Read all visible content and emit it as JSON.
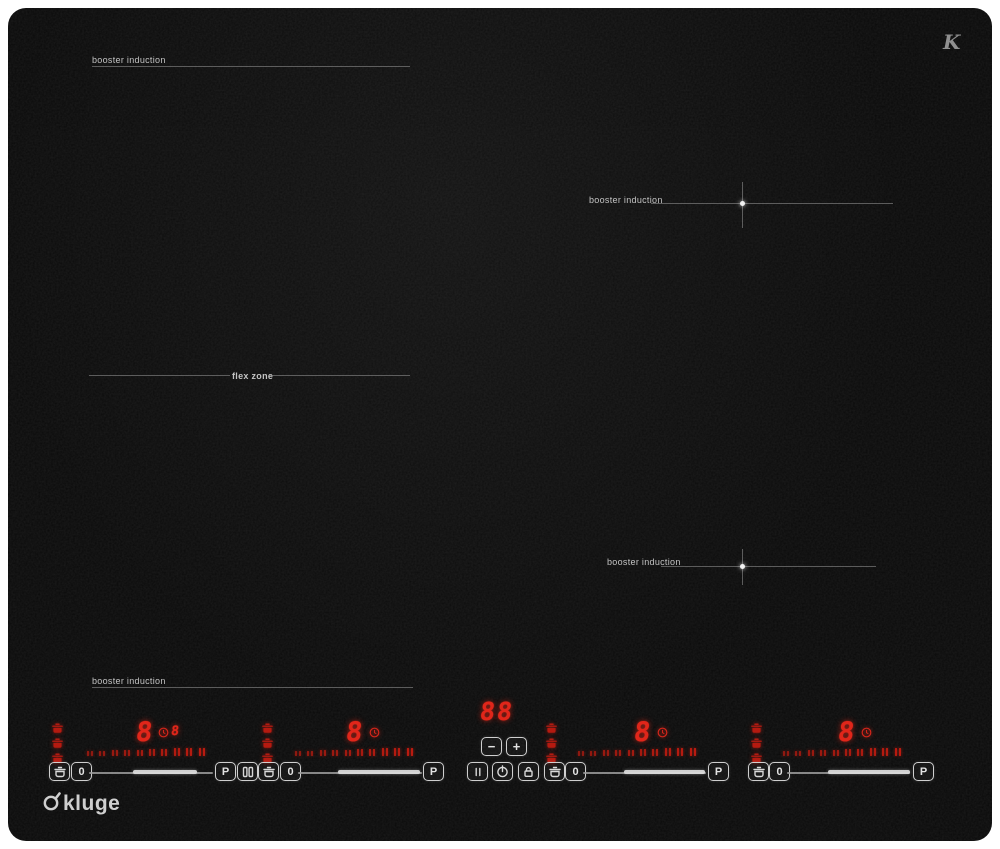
{
  "page": {
    "background": "#ffffff"
  },
  "cooktop": {
    "surface_color": "#0a0a0a"
  },
  "brand": {
    "monogram": "K",
    "wordmark": "kluge"
  },
  "colors": {
    "led_red": "#e0261a",
    "tick_red": "#c01c10",
    "control_outline": "#cfcfcf",
    "annotation_text": "#c4c4c4",
    "annotation_line": "#8d8d8d"
  },
  "annotations": [
    {
      "label": "booster induction",
      "position": "top-left"
    },
    {
      "label": "flex zone",
      "position": "mid-left"
    },
    {
      "label": "booster induction",
      "position": "right-upper"
    },
    {
      "label": "booster induction",
      "position": "right-lower"
    },
    {
      "label": "booster induction",
      "position": "bottom-left"
    }
  ],
  "center_controls": {
    "timer_display": "88",
    "minus_label": "−",
    "plus_label": "+"
  },
  "slider": {
    "tick_pairs": 10
  },
  "icons": {
    "pan_select": "pot-icon",
    "pan_detected": "pot-indicator-icon",
    "timer": "clock-icon",
    "bridge": "flex-bridge-icon",
    "pause": "pause-icon",
    "power": "power-icon",
    "lock": "lock-icon"
  },
  "zones": [
    {
      "name": "zone-1",
      "power_display": "8",
      "timer_digit": "8",
      "zero_label": "0",
      "boost_label": "P",
      "pan_indicators": 3,
      "has_bridge": true
    },
    {
      "name": "zone-2",
      "power_display": "8",
      "zero_label": "0",
      "boost_label": "P",
      "pan_indicators": 3
    },
    {
      "name": "zone-3",
      "power_display": "8",
      "zero_label": "0",
      "boost_label": "P",
      "pan_indicators": 3
    },
    {
      "name": "zone-4",
      "power_display": "8",
      "zero_label": "0",
      "boost_label": "P",
      "pan_indicators": 3
    }
  ]
}
